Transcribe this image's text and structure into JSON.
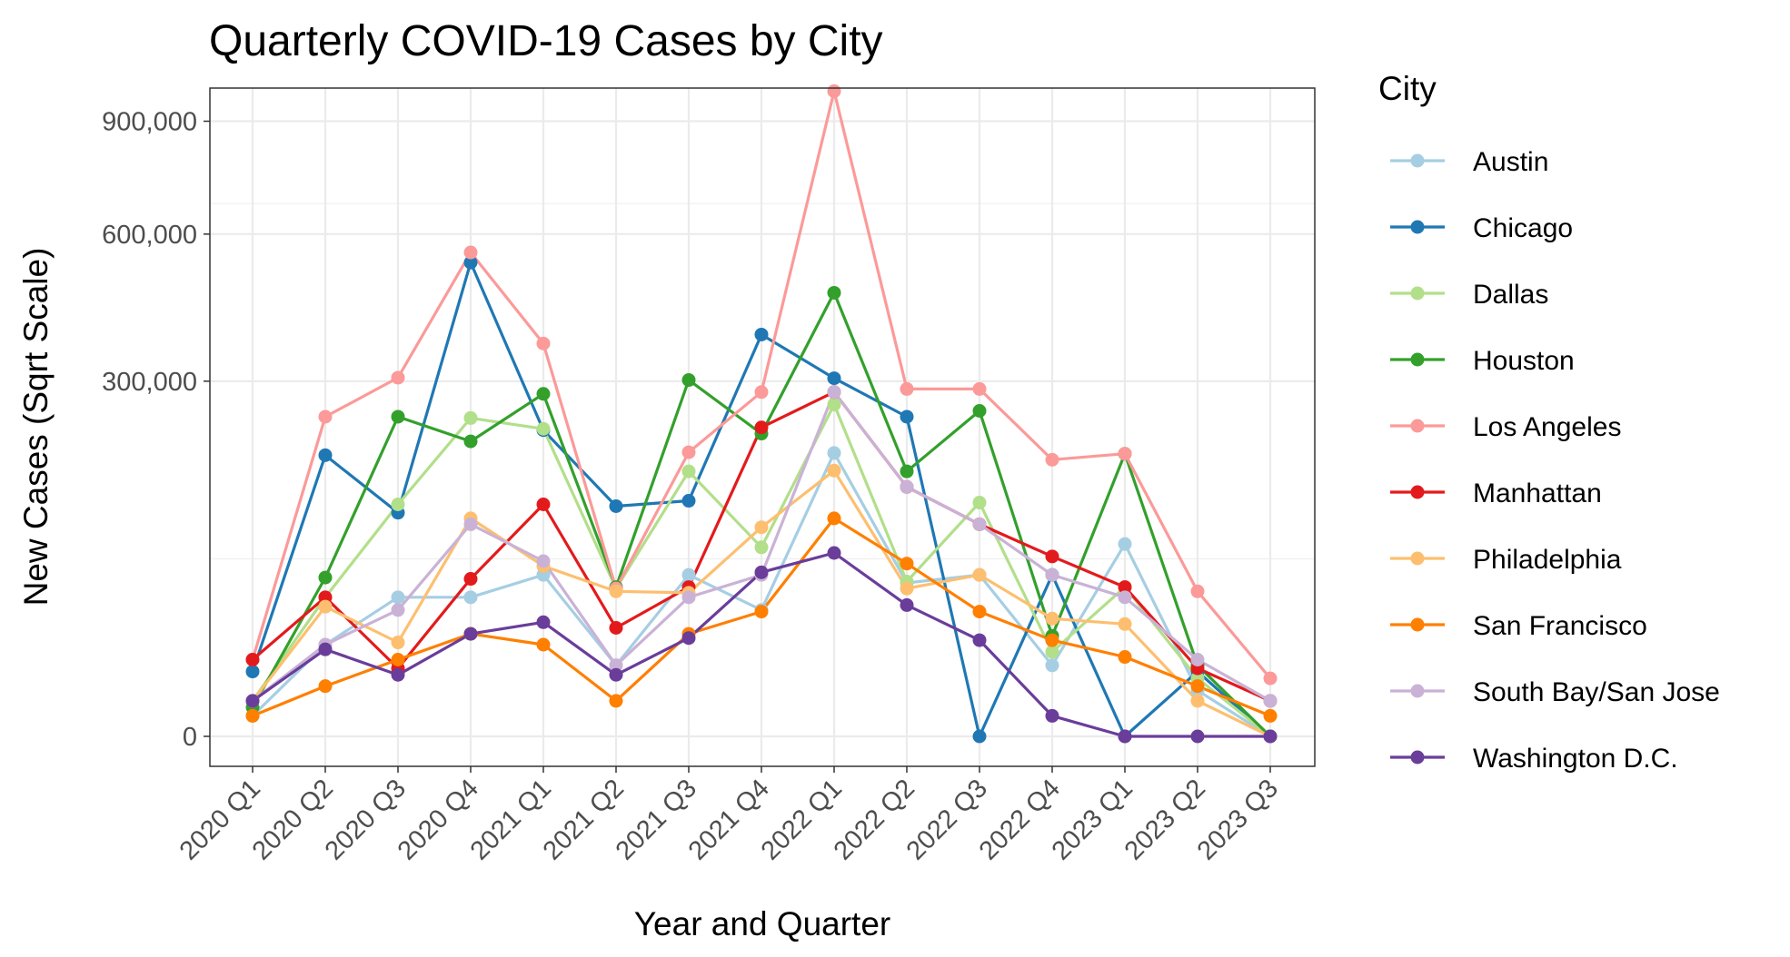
{
  "chart_data": {
    "type": "line",
    "title": "Quarterly COVID-19 Cases by City",
    "xlabel": "Year and Quarter",
    "ylabel": "New Cases (Sqrt Scale)",
    "y_scale": "sqrt",
    "ylim": [
      0,
      1060000
    ],
    "yticks": [
      {
        "value": 0,
        "label": "0"
      },
      {
        "value": 300000,
        "label": "300,000"
      },
      {
        "value": 600000,
        "label": "600,000"
      },
      {
        "value": 900000,
        "label": "900,000"
      }
    ],
    "grid": true,
    "legend_title": "City",
    "legend_position": "right",
    "categories": [
      "2020 Q1",
      "2020 Q2",
      "2020 Q3",
      "2020 Q4",
      "2021 Q1",
      "2021 Q2",
      "2021 Q3",
      "2021 Q4",
      "2022 Q1",
      "2022 Q2",
      "2022 Q3",
      "2022 Q4",
      "2023 Q1",
      "2023 Q2",
      "2023 Q3"
    ],
    "series": [
      {
        "name": "Austin",
        "color": "#a6cee3",
        "values": [
          1000,
          20000,
          46000,
          46000,
          62000,
          12000,
          62000,
          38000,
          191000,
          56000,
          62000,
          12000,
          88000,
          5000,
          0
        ]
      },
      {
        "name": "Chicago",
        "color": "#1f78b4",
        "values": [
          10000,
          188000,
          119000,
          534000,
          223000,
          126000,
          132000,
          384000,
          305000,
          243000,
          0,
          62000,
          0,
          10000,
          0
        ]
      },
      {
        "name": "Dallas",
        "color": "#b2df8a",
        "values": [
          3000,
          46000,
          128000,
          241000,
          225000,
          52000,
          167000,
          85000,
          262000,
          57000,
          130000,
          17000,
          53000,
          8000,
          0
        ]
      },
      {
        "name": "Houston",
        "color": "#33a02c",
        "values": [
          2000,
          60000,
          243000,
          207000,
          279000,
          53000,
          302000,
          218000,
          468000,
          167000,
          252000,
          24000,
          190000,
          12000,
          0
        ]
      },
      {
        "name": "Los Angeles",
        "color": "#fb9a99",
        "values": [
          14000,
          243000,
          306000,
          557000,
          367000,
          52000,
          192000,
          282000,
          990000,
          287000,
          287000,
          182000,
          190000,
          50000,
          8000
        ]
      },
      {
        "name": "Manhattan",
        "color": "#e31a1c",
        "values": [
          14000,
          46000,
          11000,
          59000,
          128000,
          28000,
          53000,
          227000,
          282000,
          148000,
          107000,
          77000,
          53000,
          11000,
          3000
        ]
      },
      {
        "name": "Philadelphia",
        "color": "#fdbf6f",
        "values": [
          3000,
          40000,
          21000,
          113000,
          69000,
          50000,
          49000,
          104000,
          168000,
          52000,
          62000,
          33000,
          30000,
          3000,
          0
        ]
      },
      {
        "name": "San Francisco",
        "color": "#ff7f00",
        "values": [
          1000,
          6000,
          14000,
          25000,
          20000,
          3000,
          25000,
          37000,
          113000,
          71000,
          37000,
          22000,
          15000,
          6000,
          1000
        ]
      },
      {
        "name": "South Bay/San Jose",
        "color": "#cab2d6",
        "values": [
          3000,
          20000,
          38000,
          107000,
          73000,
          12000,
          46000,
          62000,
          282000,
          148000,
          107000,
          62000,
          46000,
          14000,
          3000
        ]
      },
      {
        "name": "Washington D.C.",
        "color": "#6a3d9a",
        "values": [
          3000,
          18000,
          9000,
          25000,
          31000,
          9000,
          23000,
          64000,
          80000,
          41000,
          22000,
          1000,
          0,
          0,
          0
        ]
      }
    ]
  }
}
